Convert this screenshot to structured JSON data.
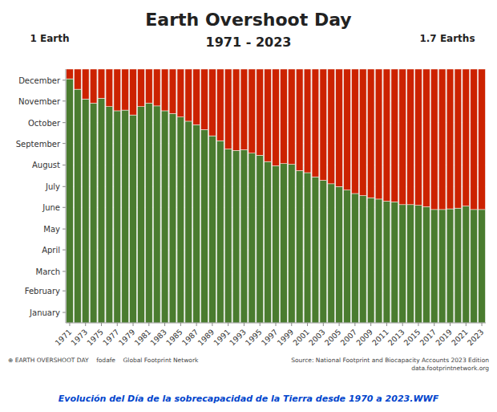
{
  "chart_data": {
    "type": "bar",
    "stacked": true,
    "title": "Earth Overshoot Day",
    "subtitle": "1971 - 2023",
    "annotations": [
      "1 Earth",
      "1.7 Earths",
      "Source: National Footprint and Biocapacity Accounts 2023 Edition\ndata.footprintnetwork.org",
      "⊕ EARTH OVERSHOOT DAY    fodafe    Global Footprint Network",
      "Evolución del Día de la sobrecapacidad de la Tierra desde 1970 a 2023.WWF"
    ],
    "categories": [
      "1971",
      null,
      "1973",
      null,
      "1975",
      null,
      "1977",
      null,
      "1979",
      null,
      "1981",
      null,
      "1983",
      null,
      "1985",
      null,
      "1987",
      null,
      "1989",
      null,
      "1991",
      null,
      "1993",
      null,
      "1995",
      null,
      "1997",
      null,
      "1999",
      null,
      "2001",
      null,
      "2003",
      null,
      "2005",
      null,
      "2007",
      null,
      "2009",
      null,
      "2011",
      null,
      "2013",
      null,
      "2015",
      null,
      "2017",
      null,
      "2019",
      null,
      "2021",
      null,
      "2023"
    ],
    "series": [
      {
        "color": "#4a7c2f",
        "values": [
          351,
          336,
          322,
          316,
          323,
          311,
          305,
          306,
          299,
          311,
          316,
          312,
          305,
          301,
          296,
          290,
          285,
          278,
          269,
          262,
          250,
          248,
          249,
          244,
          241,
          232,
          226,
          229,
          228,
          219,
          216,
          210,
          205,
          200,
          196,
          191,
          186,
          183,
          180,
          178,
          175,
          174,
          170,
          170,
          169,
          167,
          163,
          163,
          164,
          165,
          168,
          163,
          163
        ]
      },
      {
        "color": "#cc2200",
        "values": [
          14,
          29,
          43,
          49,
          42,
          54,
          60,
          59,
          66,
          54,
          49,
          53,
          60,
          64,
          69,
          75,
          80,
          87,
          96,
          103,
          115,
          117,
          116,
          121,
          124,
          133,
          139,
          136,
          137,
          146,
          149,
          155,
          160,
          165,
          169,
          174,
          179,
          182,
          185,
          187,
          190,
          191,
          195,
          195,
          196,
          198,
          202,
          202,
          201,
          200,
          197,
          202,
          202
        ]
      }
    ],
    "ylim": [
      0,
      365
    ],
    "yticks": [
      {
        "value": 15,
        "label": "January"
      },
      {
        "value": 46,
        "label": "February"
      },
      {
        "value": 74,
        "label": "March"
      },
      {
        "value": 105,
        "label": "April"
      },
      {
        "value": 135,
        "label": "May"
      },
      {
        "value": 166,
        "label": "June"
      },
      {
        "value": 196,
        "label": "July"
      },
      {
        "value": 227,
        "label": "August"
      },
      {
        "value": 258,
        "label": "September"
      },
      {
        "value": 288,
        "label": "October"
      },
      {
        "value": 319,
        "label": "November"
      },
      {
        "value": 349,
        "label": "December"
      }
    ],
    "grid": true
  }
}
